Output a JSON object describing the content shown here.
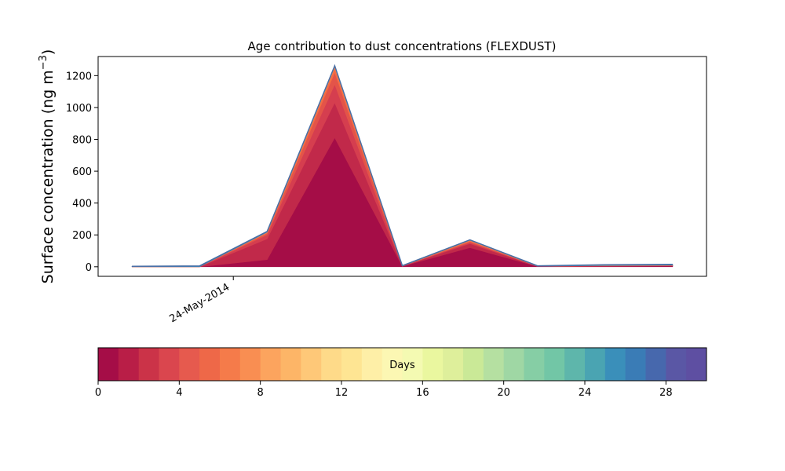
{
  "chart_data": [
    {
      "type": "area",
      "title": "Age contribution to dust concentrations (FLEXDUST)",
      "xlabel": "",
      "ylabel": "Surface concentration (ng m",
      "ylabel_superscript": "−3",
      "ylabel_suffix": ")",
      "ylim": [
        -60,
        1320
      ],
      "yticks": [
        0,
        200,
        400,
        600,
        800,
        1000,
        1200
      ],
      "xlim": [
        "2014-05-20",
        "2014-06-07"
      ],
      "xticks": [
        {
          "x": "2014-05-24",
          "label": "24-May-2014"
        }
      ],
      "x": [
        "2014-05-21",
        "2014-05-23",
        "2014-05-25",
        "2014-05-27",
        "2014-05-29",
        "2014-05-31",
        "2014-06-02",
        "2014-06-04",
        "2014-06-06"
      ],
      "stacked": true,
      "grid": false,
      "series": [
        {
          "color": "#a50d47",
          "values": [
            0,
            0,
            45,
            810,
            3,
            120,
            2,
            3,
            5
          ]
        },
        {
          "color": "#c1294a",
          "values": [
            0,
            0,
            130,
            220,
            1,
            25,
            1,
            1,
            1
          ]
        },
        {
          "color": "#d53e4f",
          "values": [
            0,
            0,
            25,
            115,
            0,
            8,
            0,
            1,
            1
          ]
        },
        {
          "color": "#e35449",
          "values": [
            0,
            0,
            10,
            75,
            0,
            6,
            0,
            1,
            1
          ]
        },
        {
          "color": "#f46d43",
          "values": [
            0,
            0,
            5,
            30,
            0,
            5,
            0,
            1,
            1
          ]
        },
        {
          "color": "#f99153",
          "values": [
            0,
            0,
            2,
            7,
            0,
            2,
            0,
            1,
            1
          ]
        },
        {
          "color": "#3288bd",
          "values": [
            2,
            3,
            3,
            3,
            2,
            2,
            2,
            3,
            3
          ]
        },
        {
          "color": "#5e4fa2",
          "values": [
            1,
            2,
            2,
            2,
            1,
            1,
            1,
            2,
            2
          ]
        }
      ]
    },
    {
      "type": "colorbar",
      "label": "Days",
      "range": [
        0,
        30
      ],
      "ticks": [
        0,
        4,
        8,
        12,
        16,
        20,
        24,
        28
      ],
      "colors": [
        "#a50d47",
        "#b91e47",
        "#cb3348",
        "#da464e",
        "#e65a4e",
        "#ee6848",
        "#f57b4a",
        "#f98e52",
        "#fca45e",
        "#fdb567",
        "#fec878",
        "#feda89",
        "#fee593",
        "#feefa7",
        "#fcf7b3",
        "#f4fab2",
        "#eaf79f",
        "#deef9b",
        "#cae997",
        "#b5e0a1",
        "#9fd7a4",
        "#86cea5",
        "#72c6a6",
        "#5eb6ab",
        "#4aa4b2",
        "#3a8fba",
        "#3a7cb6",
        "#4768ad",
        "#5a57a5",
        "#5e4fa2"
      ]
    }
  ]
}
